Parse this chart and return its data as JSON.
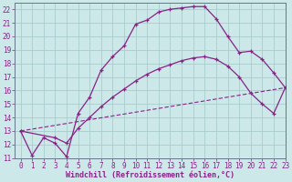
{
  "xlabel": "Windchill (Refroidissement éolien,°C)",
  "xlim": [
    -0.5,
    23
  ],
  "ylim": [
    11,
    22.5
  ],
  "xticks": [
    0,
    1,
    2,
    3,
    4,
    5,
    6,
    7,
    8,
    9,
    10,
    11,
    12,
    13,
    14,
    15,
    16,
    17,
    18,
    19,
    20,
    21,
    22,
    23
  ],
  "yticks": [
    11,
    12,
    13,
    14,
    15,
    16,
    17,
    18,
    19,
    20,
    21,
    22
  ],
  "bg_color": "#cce8e8",
  "grid_color": "#aacccc",
  "line_color": "#882288",
  "curve1_x": [
    0,
    1,
    2,
    3,
    4,
    5,
    6,
    7,
    8,
    9,
    10,
    11,
    12,
    13,
    14,
    15,
    16,
    17,
    18,
    19,
    20,
    21,
    22,
    23
  ],
  "curve1_y": [
    13.0,
    11.2,
    12.5,
    12.1,
    11.1,
    14.3,
    15.5,
    17.5,
    18.5,
    19.3,
    20.9,
    21.2,
    21.8,
    22.0,
    22.1,
    22.2,
    22.2,
    21.3,
    20.0,
    18.8,
    18.9,
    18.3,
    17.3,
    16.2
  ],
  "curve2_x": [
    0,
    3,
    4,
    5,
    6,
    7,
    8,
    9,
    10,
    11,
    12,
    13,
    14,
    15,
    16,
    17,
    18,
    19,
    20,
    21,
    22,
    23
  ],
  "curve2_y": [
    13.0,
    12.5,
    12.1,
    13.2,
    14.0,
    14.8,
    15.5,
    16.1,
    16.7,
    17.2,
    17.6,
    17.9,
    18.2,
    18.4,
    18.5,
    18.3,
    17.8,
    17.0,
    15.8,
    15.0,
    14.3,
    16.2
  ],
  "curve3_x": [
    0,
    23
  ],
  "curve3_y": [
    13.0,
    16.2
  ],
  "xtick_fontsize": 5.5,
  "ytick_fontsize": 5.5,
  "xlabel_fontsize": 6.0
}
